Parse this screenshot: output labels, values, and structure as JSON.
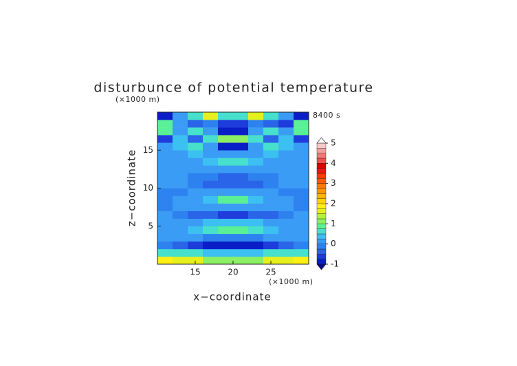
{
  "chart_data": {
    "type": "contour",
    "title": "disturbunce of potential temperature",
    "time_label": "8400 s",
    "x_label": "x−coordinate",
    "y_label": "z−coordinate",
    "x_unit": "(×1000 m)",
    "y_unit": "(×1000 m)",
    "x": [
      11,
      13,
      15,
      17,
      19,
      21,
      23,
      25,
      27,
      29
    ],
    "y": [
      0.5,
      1.5,
      2.5,
      3.5,
      4.5,
      5.5,
      6.5,
      7.5,
      8.5,
      9.5,
      10.5,
      11.5,
      12.5,
      13.5,
      14.5,
      15.5,
      16.5,
      17.5,
      18.5,
      19.5
    ],
    "z": [
      [
        1.8,
        1.7,
        1.5,
        1.2,
        1.0,
        1.0,
        1.2,
        1.5,
        1.7,
        1.8
      ],
      [
        0.6,
        0.6,
        0.5,
        0.4,
        0.3,
        0.3,
        0.4,
        0.5,
        0.6,
        0.6
      ],
      [
        -0.1,
        -0.3,
        -0.6,
        -0.8,
        -0.9,
        -0.9,
        -0.8,
        -0.6,
        -0.3,
        -0.1
      ],
      [
        0.1,
        0.1,
        0.0,
        -0.1,
        -0.2,
        -0.2,
        -0.1,
        0.0,
        0.1,
        0.1
      ],
      [
        0.1,
        0.2,
        0.4,
        0.6,
        0.8,
        0.8,
        0.6,
        0.4,
        0.2,
        0.1
      ],
      [
        0.1,
        0.1,
        0.2,
        0.3,
        0.3,
        0.3,
        0.3,
        0.2,
        0.1,
        0.1
      ],
      [
        0.0,
        -0.1,
        -0.3,
        -0.5,
        -0.6,
        -0.6,
        -0.5,
        -0.3,
        -0.1,
        0.0
      ],
      [
        -0.1,
        0.0,
        0.1,
        0.1,
        0.2,
        0.2,
        0.1,
        0.1,
        0.0,
        -0.1
      ],
      [
        -0.2,
        0.1,
        0.2,
        0.4,
        0.8,
        0.8,
        0.4,
        0.2,
        0.1,
        -0.2
      ],
      [
        -0.2,
        -0.1,
        0.1,
        0.1,
        0.2,
        0.2,
        0.1,
        0.1,
        -0.1,
        -0.2
      ],
      [
        0.1,
        0.1,
        -0.1,
        -0.3,
        -0.3,
        -0.3,
        -0.3,
        -0.1,
        0.1,
        0.1
      ],
      [
        0.1,
        0.1,
        -0.1,
        -0.2,
        -0.3,
        -0.3,
        -0.2,
        -0.1,
        0.1,
        0.1
      ],
      [
        0.1,
        0.1,
        0.1,
        0.1,
        0.2,
        0.2,
        0.1,
        0.1,
        0.1,
        0.1
      ],
      [
        0.1,
        0.2,
        0.2,
        0.3,
        0.5,
        0.5,
        0.3,
        0.2,
        0.2,
        0.1
      ],
      [
        0.1,
        0.2,
        0.3,
        0.2,
        0.1,
        0.1,
        0.2,
        0.3,
        0.2,
        0.1
      ],
      [
        0.1,
        0.3,
        0.5,
        0.2,
        -0.8,
        -0.8,
        0.2,
        0.5,
        0.3,
        0.1
      ],
      [
        -0.6,
        0.3,
        -0.3,
        0.6,
        1.0,
        1.0,
        0.6,
        -0.3,
        0.3,
        -0.6
      ],
      [
        0.8,
        0.1,
        0.6,
        0.2,
        -0.8,
        -0.8,
        0.2,
        0.6,
        0.1,
        0.8
      ],
      [
        0.9,
        0.0,
        -0.3,
        -0.2,
        -0.7,
        -0.7,
        -0.2,
        -0.3,
        -0.6,
        0.9
      ],
      [
        -0.8,
        0.2,
        0.6,
        1.5,
        0.7,
        0.7,
        1.5,
        0.6,
        0.2,
        -0.8
      ]
    ],
    "xlim": [
      10,
      30
    ],
    "ylim": [
      0,
      20
    ],
    "xticks": [
      15,
      20,
      25
    ],
    "yticks": [
      5,
      10,
      15
    ],
    "levels": [
      -1,
      -0.75,
      -0.5,
      -0.25,
      0,
      0.25,
      0.5,
      0.75,
      1,
      1.25,
      1.5,
      1.75,
      2,
      2.25,
      2.5,
      2.75,
      3,
      3.25,
      3.5,
      3.75,
      4,
      4.25,
      4.5,
      4.75,
      5
    ],
    "colors": [
      "#0a1ec8",
      "#1e3cdc",
      "#2a64e8",
      "#2e82f0",
      "#3a9cf5",
      "#3cc0f2",
      "#46e0cc",
      "#5af096",
      "#8cf064",
      "#b4f03c",
      "#e6f01e",
      "#fff014",
      "#ffd20a",
      "#ffb400",
      "#ff9600",
      "#ff7800",
      "#ff5a00",
      "#ff3c00",
      "#f01414",
      "#dc0000",
      "#f05050",
      "#f07878",
      "#f5a0a0",
      "#fac8c8"
    ],
    "under_color": "#0a0a8c",
    "over_color": "#ffffff",
    "cbar_ticks": [
      -1,
      0,
      1,
      2,
      3,
      4,
      5
    ]
  }
}
